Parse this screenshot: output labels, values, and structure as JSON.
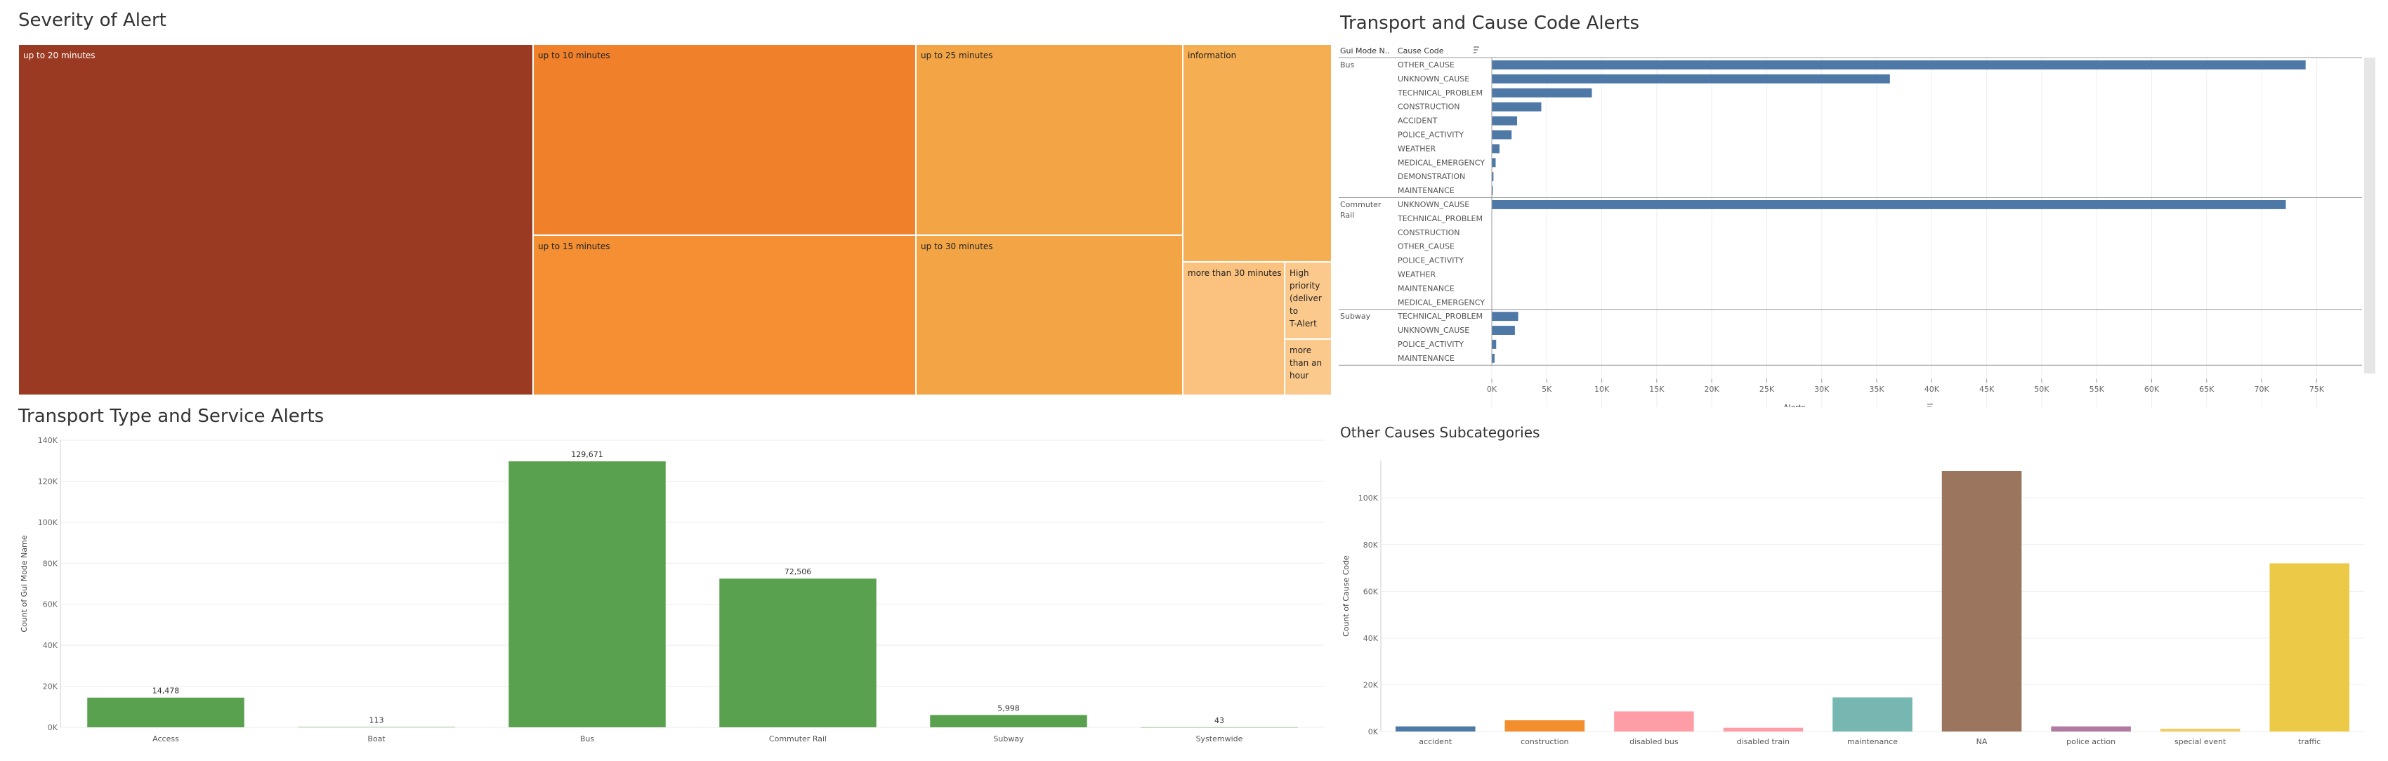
{
  "titles": {
    "severity": "Severity of Alert",
    "transport_cause": "Transport and Cause Code Alerts",
    "transport_service": "Transport Type and Service Alerts",
    "other_causes": "Other Causes Subcategories"
  },
  "chart_data": [
    {
      "id": "severity",
      "type": "treemap",
      "title": "Severity of Alert",
      "cells": [
        {
          "label": "up to 20 minutes",
          "color": "#9b3a22"
        },
        {
          "label": "up to 10 minutes",
          "color": "#f0812a"
        },
        {
          "label": "up to 15 minutes",
          "color": "#f48f33"
        },
        {
          "label": "up to 25 minutes",
          "color": "#f3a546"
        },
        {
          "label": "up to 30 minutes",
          "color": "#f3a546"
        },
        {
          "label": "information",
          "color": "#f6ae52"
        },
        {
          "label": "more than 30 minutes",
          "color": "#fbc27f"
        },
        {
          "label": "High priority (deliver to T-Alert",
          "color": "#fcc98c"
        },
        {
          "label": "more than an hour",
          "color": "#fcc98c"
        }
      ]
    },
    {
      "id": "transport_cause",
      "type": "bar",
      "orientation": "horizontal",
      "title": "Transport and Cause Code Alerts",
      "row_header_1": "Gui Mode N..",
      "row_header_2": "Cause Code",
      "xlabel": "Alerts",
      "xlim": [
        0,
        79000
      ],
      "xticks": [
        "0K",
        "5K",
        "10K",
        "15K",
        "20K",
        "25K",
        "30K",
        "35K",
        "40K",
        "45K",
        "50K",
        "55K",
        "60K",
        "65K",
        "70K",
        "75K"
      ],
      "color": "#4e79a7",
      "groups": [
        {
          "name": "Bus",
          "rows": [
            {
              "label": "OTHER_CAUSE",
              "value": 74000
            },
            {
              "label": "UNKNOWN_CAUSE",
              "value": 36200
            },
            {
              "label": "TECHNICAL_PROBLEM",
              "value": 9100
            },
            {
              "label": "CONSTRUCTION",
              "value": 4500
            },
            {
              "label": "ACCIDENT",
              "value": 2300
            },
            {
              "label": "POLICE_ACTIVITY",
              "value": 1800
            },
            {
              "label": "WEATHER",
              "value": 700
            },
            {
              "label": "MEDICAL_EMERGENCY",
              "value": 350
            },
            {
              "label": "DEMONSTRATION",
              "value": 150
            },
            {
              "label": "MAINTENANCE",
              "value": 80
            }
          ]
        },
        {
          "name": "Commuter Rail",
          "rows": [
            {
              "label": "UNKNOWN_CAUSE",
              "value": 72200
            },
            {
              "label": "TECHNICAL_PROBLEM",
              "value": 0
            },
            {
              "label": "CONSTRUCTION",
              "value": 0
            },
            {
              "label": "OTHER_CAUSE",
              "value": 0
            },
            {
              "label": "POLICE_ACTIVITY",
              "value": 0
            },
            {
              "label": "WEATHER",
              "value": 0
            },
            {
              "label": "MAINTENANCE",
              "value": 0
            },
            {
              "label": "MEDICAL_EMERGENCY",
              "value": 0
            }
          ]
        },
        {
          "name": "Subway",
          "rows": [
            {
              "label": "TECHNICAL_PROBLEM",
              "value": 2400
            },
            {
              "label": "UNKNOWN_CAUSE",
              "value": 2100
            },
            {
              "label": "POLICE_ACTIVITY",
              "value": 400
            },
            {
              "label": "MAINTENANCE",
              "value": 250
            }
          ]
        }
      ]
    },
    {
      "id": "transport_service",
      "type": "bar",
      "title": "Transport Type and Service Alerts",
      "ylabel": "Count of Gui Mode Name",
      "ylim": [
        0,
        140000
      ],
      "yticks": [
        "0K",
        "20K",
        "40K",
        "60K",
        "80K",
        "100K",
        "120K",
        "140K"
      ],
      "color": "#59a14f",
      "categories": [
        "Access",
        "Boat",
        "Bus",
        "Commuter Rail",
        "Subway",
        "Systemwide"
      ],
      "values": [
        14478,
        113,
        129671,
        72506,
        5998,
        43
      ],
      "value_labels": [
        "14,478",
        "113",
        "129,671",
        "72,506",
        "5,998",
        "43"
      ]
    },
    {
      "id": "other_causes",
      "type": "bar",
      "title": "Other Causes Subcategories",
      "ylabel": "Count of Cause Code",
      "ylim": [
        0,
        116000
      ],
      "yticks": [
        "0K",
        "20K",
        "40K",
        "60K",
        "80K",
        "100K"
      ],
      "categories": [
        "accident",
        "construction",
        "disabled bus",
        "disabled train",
        "maintenance",
        "NA",
        "police action",
        "special event",
        "traffic"
      ],
      "values": [
        2200,
        4800,
        8600,
        1600,
        14600,
        111500,
        2200,
        1200,
        72000
      ],
      "colors": [
        "#4e79a7",
        "#f28e2b",
        "#ff9da7",
        "#ff9da7",
        "#76b7b2",
        "#9c755f",
        "#b07aa1",
        "#f1ce63",
        "#edc948"
      ]
    }
  ]
}
